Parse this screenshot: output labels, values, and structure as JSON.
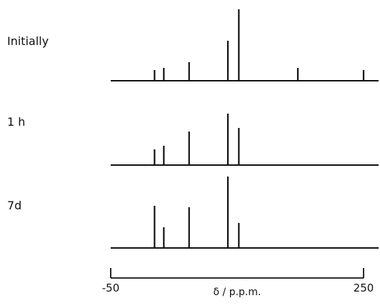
{
  "chart_data": {
    "type": "bar",
    "title": "",
    "xlabel": "δ / p.p.m.",
    "ylabel": "",
    "xlim": [
      -50,
      250
    ],
    "x_ticks": [
      "-50",
      "250"
    ],
    "grid": false,
    "series": [
      {
        "name": "Initially",
        "points": [
          {
            "x": 2,
            "y": 0.15
          },
          {
            "x": 13,
            "y": 0.18
          },
          {
            "x": 43,
            "y": 0.26
          },
          {
            "x": 89,
            "y": 0.56
          },
          {
            "x": 102,
            "y": 1.0
          },
          {
            "x": 172,
            "y": 0.18
          },
          {
            "x": 250,
            "y": 0.15
          }
        ]
      },
      {
        "name": "1 h",
        "points": [
          {
            "x": 2,
            "y": 0.22
          },
          {
            "x": 13,
            "y": 0.27
          },
          {
            "x": 43,
            "y": 0.47
          },
          {
            "x": 89,
            "y": 0.72
          },
          {
            "x": 102,
            "y": 0.52
          }
        ]
      },
      {
        "name": "7d",
        "points": [
          {
            "x": 2,
            "y": 0.59
          },
          {
            "x": 13,
            "y": 0.29
          },
          {
            "x": 43,
            "y": 0.57
          },
          {
            "x": 89,
            "y": 1.0
          },
          {
            "x": 102,
            "y": 0.35
          }
        ]
      }
    ]
  }
}
